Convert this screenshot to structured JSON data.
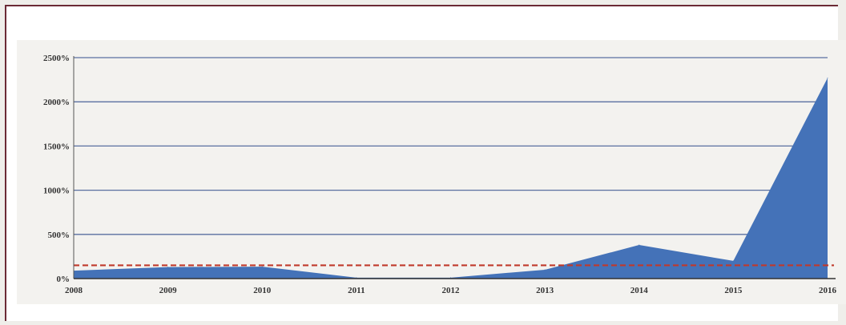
{
  "chart_data": {
    "type": "area",
    "title": "",
    "xlabel": "",
    "ylabel": "",
    "x": [
      "2008",
      "2009",
      "2010",
      "2011",
      "2012",
      "2013",
      "2014",
      "2015",
      "2016"
    ],
    "series": [
      {
        "values": [
          90,
          130,
          135,
          10,
          10,
          100,
          380,
          200,
          2270
        ]
      }
    ],
    "reference_line": {
      "value": 150,
      "style": "dashed",
      "color": "#c0392b"
    },
    "ylim": [
      0,
      2500
    ],
    "y_ticks": [
      0,
      500,
      1000,
      1500,
      2000,
      2500
    ],
    "y_tick_labels": [
      "0%",
      "500%",
      "1000%",
      "1500%",
      "2000%",
      "2500%"
    ],
    "x_tick_labels": [
      "2008",
      "2009",
      "2010",
      "2011",
      "2012",
      "2013",
      "2014",
      "2015",
      "2016"
    ],
    "grid": true,
    "legend": "none",
    "colors": {
      "area": "#4472b8",
      "grid": "#5a6fa0",
      "reference": "#c0392b",
      "frame": "#6b2a35"
    }
  }
}
